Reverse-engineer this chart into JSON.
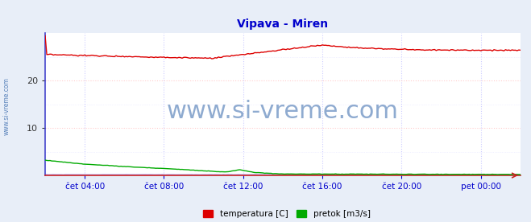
{
  "title": "Vipava - Miren",
  "title_color": "#0000cc",
  "title_fontsize": 10,
  "fig_bg_color": "#e8eef8",
  "plot_bg_color": "#ffffff",
  "grid_color_h": "#ffcccc",
  "grid_color_v": "#ccccff",
  "watermark_text": "www.si-vreme.com",
  "watermark_color": "#3366aa",
  "watermark_alpha": 0.55,
  "watermark_fontsize": 22,
  "side_text": "www.si-vreme.com",
  "side_text_color": "#3366aa",
  "tick_color": "#333333",
  "xtick_color": "#0000cc",
  "ylim": [
    0,
    30
  ],
  "yticks": [
    10,
    20
  ],
  "xtick_labels": [
    "čet 04:00",
    "čet 08:00",
    "čet 12:00",
    "čet 16:00",
    "čet 20:00",
    "pet 00:00"
  ],
  "n_points": 289,
  "temp_color": "#dd0000",
  "flow_color": "#00aa00",
  "height_color": "#8888ff",
  "spine_color": "#4444cc",
  "bottom_spine_color": "#cc2222",
  "legend_items": [
    {
      "label": "temperatura [C]",
      "color": "#dd0000"
    },
    {
      "label": "pretok [m3/s]",
      "color": "#00aa00"
    }
  ]
}
